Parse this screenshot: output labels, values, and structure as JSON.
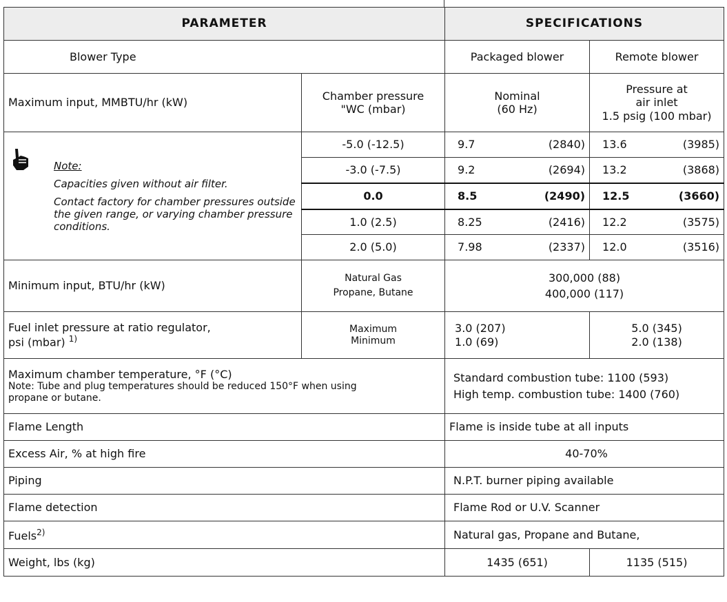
{
  "table": {
    "header": [
      "PARAMETER",
      "SPECIFICATIONS"
    ],
    "blower_type": {
      "label": "Blower Type",
      "packaged": "Packaged blower",
      "remote": "Remote blower"
    },
    "max_input": {
      "label": "Maximum input, MMBTU/hr (kW)",
      "chamber_header": [
        "Chamber pressure",
        "\"WC (mbar)"
      ],
      "nominal_header": [
        "Nominal",
        "(60 Hz)"
      ],
      "remote_header": [
        "Pressure at",
        "air inlet",
        "1.5 psig (100 mbar)"
      ],
      "note": {
        "title": "Note:",
        "lines": [
          "Capacities given without air filter.",
          "Contact factory for chamber pressures outside the given range, or varying chamber pressure conditions."
        ]
      },
      "rows": [
        [
          "-5.0 (-12.5)",
          "9.7",
          "(2840)",
          "13.6",
          "(3985)"
        ],
        [
          "-3.0 (-7.5)",
          "9.2",
          "(2694)",
          "13.2",
          "(3868)"
        ],
        [
          "0.0",
          "8.5",
          "(2490)",
          "12.5",
          "(3660)"
        ],
        [
          "1.0  (2.5)",
          "8.25",
          "(2416)",
          "12.2",
          "(3575)"
        ],
        [
          "2.0  (5.0)",
          "7.98",
          "(2337)",
          "12.0",
          "(3516)"
        ]
      ]
    },
    "min_input": {
      "label": "Minimum input, BTU/hr (kW)",
      "fuels": [
        "Natural Gas",
        "Propane, Butane"
      ],
      "values": [
        "300,000 (88)",
        "400,000 (117)"
      ]
    },
    "fuel_inlet": {
      "label": [
        "Fuel inlet pressure at ratio regulator,",
        "psi (mbar)",
        "1)"
      ],
      "kinds": [
        "Maximum",
        "Minimum"
      ],
      "packaged": [
        "3.0 (207)",
        "1.0 (69)"
      ],
      "remote": [
        "5.0 (345)",
        "2.0 (138)"
      ]
    },
    "chamber_temp": {
      "label": "Maximum chamber temperature, °F (°C)",
      "note": "Note: Tube and plug temperatures should be reduced 150°F when using propane or butane.",
      "values": [
        "Standard combustion tube: 1100 (593)",
        "High temp. combustion tube: 1400 (760)"
      ]
    },
    "simple_rows": [
      [
        "Flame Length",
        "Flame is inside tube at all inputs"
      ],
      [
        "Excess Air, % at high fire",
        "40-70%"
      ],
      [
        "Piping",
        "N.P.T. burner piping available"
      ],
      [
        "Flame detection",
        "Flame Rod or U.V. Scanner"
      ]
    ],
    "fuels": {
      "label": "Fuels",
      "footnote": "2)",
      "value": "Natural gas, Propane and Butane,"
    },
    "weight": {
      "label": "Weight, lbs (kg)",
      "packaged": "1435 (651)",
      "remote": "1135 (515)"
    }
  }
}
